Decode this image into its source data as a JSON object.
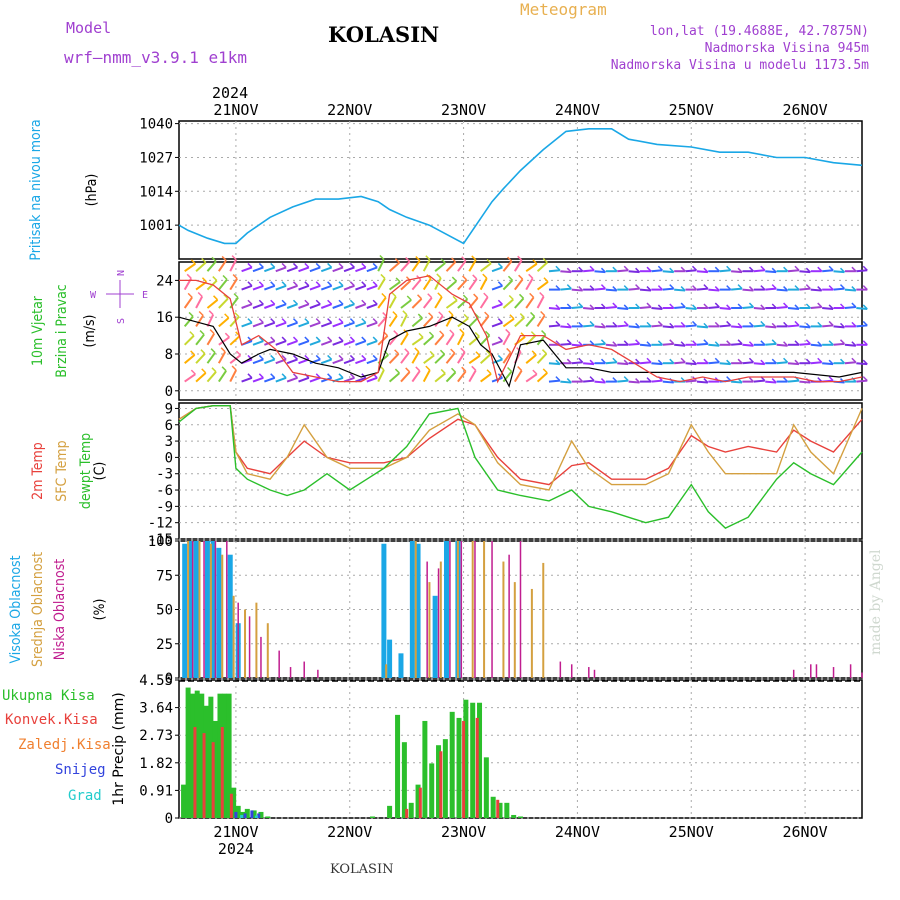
{
  "header": {
    "model_label": "Model",
    "model_name": "wrf—nmm_v3.9.1  e1km",
    "station": "KOLASIN",
    "title": "Meteogram",
    "location_line": "lon,lat (19.4688E, 42.7875N)",
    "altitude_line": "Nadmorska Visina 945m",
    "model_altitude_line": "Nadmorska Visina u modelu 1173.5m",
    "year_label": "2024",
    "watermark": "made by Angel",
    "footer_station": "KOLASIN"
  },
  "colors": {
    "pressure": "#1aa7e6",
    "temp2m": "#e8413c",
    "sfc_temp": "#d4a040",
    "dewpt": "#2bbf2b",
    "high_cloud": "#1aa7e6",
    "mid_cloud": "#d4a040",
    "low_cloud": "#c01d8f",
    "total_precip": "#2bbf2b",
    "conv_precip": "#e8413c",
    "ice_precip": "#f08030",
    "snow": "#3344dd",
    "hail": "#22cccc",
    "wind_speed": "#000000",
    "wind_gust": "#e8413c",
    "label_purple": "#a040d0",
    "label_orange": "#e8b050"
  },
  "chart_data": [
    {
      "type": "line",
      "name": "pressure",
      "xlabel": "",
      "ylabel_lines": [
        "Pritisak na nivou mora",
        "(hPa)"
      ],
      "ylim": [
        988,
        1041
      ],
      "yticks": [
        1001,
        1014,
        1027,
        1040
      ],
      "x_days": [
        0,
        0.08,
        0.25,
        0.4,
        0.5,
        0.6,
        0.8,
        1.0,
        1.2,
        1.4,
        1.6,
        1.75,
        1.85,
        2.0,
        2.2,
        2.5,
        2.75,
        2.85,
        3.0,
        3.2,
        3.4,
        3.6,
        3.8,
        3.95,
        4.2,
        4.5,
        4.75,
        5.0,
        5.25,
        5.5,
        5.75,
        6.0
      ],
      "values": [
        1001,
        999,
        996,
        994,
        994,
        998,
        1004,
        1008,
        1011,
        1011,
        1012,
        1010,
        1007,
        1004,
        1001,
        994,
        1010,
        1015,
        1022,
        1030,
        1037,
        1038,
        1038,
        1034,
        1032,
        1031,
        1029,
        1029,
        1027,
        1027,
        1025,
        1024
      ]
    },
    {
      "type": "line",
      "name": "wind",
      "ylabel_lines": [
        "10m Vjetar",
        "Brzina i Pravac",
        "(m/s)"
      ],
      "ylim": [
        -2,
        28
      ],
      "yticks": [
        0,
        8,
        16,
        24
      ],
      "compass": {
        "n": "N",
        "s": "S",
        "e": "E",
        "w": "W"
      },
      "series": [
        {
          "name": "speed",
          "x_days": [
            0,
            0.15,
            0.3,
            0.45,
            0.55,
            0.7,
            0.8,
            1.0,
            1.2,
            1.4,
            1.6,
            1.75,
            1.85,
            2.0,
            2.2,
            2.4,
            2.55,
            2.65,
            2.75,
            2.9,
            3.0,
            3.2,
            3.4,
            3.6,
            3.8,
            4.0,
            4.3,
            4.6,
            5.0,
            5.4,
            5.8,
            6.0
          ],
          "values": [
            16,
            15,
            14,
            8,
            6,
            8,
            9,
            8,
            6,
            5,
            3,
            4,
            11,
            13,
            14,
            16,
            14,
            10,
            8,
            1,
            10,
            11,
            5,
            5,
            4,
            4,
            4,
            4,
            4,
            4,
            3,
            4
          ]
        },
        {
          "name": "gust",
          "x_days": [
            0,
            0.15,
            0.3,
            0.45,
            0.55,
            0.7,
            0.85,
            1.0,
            1.2,
            1.4,
            1.6,
            1.75,
            1.85,
            2.0,
            2.2,
            2.4,
            2.55,
            2.7,
            2.8,
            3.0,
            3.2,
            3.4,
            3.6,
            3.8,
            4.0,
            4.2,
            4.4,
            4.6,
            4.8,
            5.0,
            5.2,
            5.4,
            5.6,
            5.8,
            6.0
          ],
          "values": [
            24,
            24,
            23,
            20,
            10,
            12,
            9,
            4,
            3,
            2,
            2,
            4,
            21,
            24,
            25,
            21,
            19,
            12,
            2,
            12,
            12,
            9,
            10,
            9,
            6,
            3,
            2,
            3,
            2,
            3,
            3,
            3,
            2,
            2,
            3
          ]
        }
      ]
    },
    {
      "type": "line",
      "name": "temperature",
      "ylabel_lines": [
        "2m Temp",
        "SFC Temp",
        "dewpt Temp",
        "(C)"
      ],
      "ylim": [
        -15,
        10
      ],
      "yticks": [
        9,
        6,
        3,
        0,
        -3,
        -6,
        -9,
        -12,
        -15
      ],
      "series": [
        {
          "name": "2m",
          "x_days": [
            0,
            0.15,
            0.3,
            0.45,
            0.5,
            0.6,
            0.8,
            0.95,
            1.1,
            1.3,
            1.5,
            1.65,
            1.8,
            2.0,
            2.2,
            2.45,
            2.6,
            2.8,
            3.0,
            3.25,
            3.45,
            3.6,
            3.8,
            4.1,
            4.3,
            4.5,
            4.65,
            4.8,
            5.0,
            5.25,
            5.4,
            5.55,
            5.75,
            6.0
          ],
          "values": [
            7,
            9,
            9.5,
            9.5,
            1,
            -2,
            -3,
            0,
            3,
            0,
            -1,
            -1,
            -1,
            0,
            3.5,
            7,
            6,
            0,
            -4,
            -5,
            -1.5,
            -1,
            -4,
            -4,
            -2,
            4,
            2,
            1,
            2,
            1,
            5,
            3,
            1,
            7
          ]
        },
        {
          "name": "sfc",
          "x_days": [
            0,
            0.15,
            0.3,
            0.45,
            0.5,
            0.6,
            0.8,
            0.95,
            1.1,
            1.3,
            1.5,
            1.65,
            1.8,
            2.0,
            2.2,
            2.45,
            2.6,
            2.8,
            3.0,
            3.25,
            3.45,
            3.6,
            3.8,
            4.1,
            4.3,
            4.5,
            4.65,
            4.8,
            5.0,
            5.25,
            5.4,
            5.55,
            5.75,
            6.0
          ],
          "values": [
            7,
            9,
            9.5,
            9.5,
            1,
            -3,
            -4,
            0,
            6,
            0,
            -2,
            -2,
            -2,
            0,
            5,
            8,
            6,
            -1,
            -5,
            -6,
            3,
            -2,
            -5,
            -5,
            -3,
            6,
            1,
            -3,
            -3,
            -3,
            6,
            1,
            -3,
            9
          ]
        },
        {
          "name": "dewpt",
          "x_days": [
            0,
            0.15,
            0.3,
            0.45,
            0.5,
            0.6,
            0.8,
            0.95,
            1.1,
            1.3,
            1.5,
            1.65,
            1.8,
            2.0,
            2.2,
            2.45,
            2.6,
            2.8,
            3.0,
            3.25,
            3.45,
            3.6,
            3.8,
            4.1,
            4.3,
            4.5,
            4.65,
            4.8,
            5.0,
            5.25,
            5.4,
            5.55,
            5.75,
            6.0
          ],
          "values": [
            6.5,
            9,
            9.5,
            9.5,
            -2,
            -4,
            -6,
            -7,
            -6,
            -3,
            -6,
            -4,
            -2,
            2,
            8,
            9,
            0,
            -6,
            -7,
            -8,
            -6,
            -9,
            -10,
            -12,
            -11,
            -5,
            -10,
            -13,
            -11,
            -4,
            -1,
            -3,
            -5,
            1
          ]
        }
      ]
    },
    {
      "type": "bar",
      "name": "cloud_cover",
      "ylabel_lines": [
        "Visoka Oblacnost",
        "Srednja Oblacnost",
        "Niska Oblacnost",
        "(%)"
      ],
      "ylim": [
        0,
        100
      ],
      "yticks": [
        0,
        25,
        50,
        75,
        100
      ],
      "series": [
        {
          "name": "high",
          "x_days": [
            0.05,
            0.1,
            0.15,
            0.25,
            0.3,
            0.35,
            0.45,
            0.52,
            1.8,
            1.85,
            1.95,
            2.05,
            2.1,
            2.25,
            2.35,
            2.45
          ],
          "values": [
            98,
            100,
            100,
            100,
            100,
            95,
            90,
            40,
            98,
            28,
            18,
            100,
            98,
            60,
            100,
            100
          ]
        },
        {
          "name": "mid",
          "x_days": [
            0.08,
            0.18,
            0.28,
            0.38,
            0.48,
            0.58,
            0.68,
            0.78,
            1.82,
            2.08,
            2.2,
            2.3,
            2.45,
            2.58,
            2.68,
            2.85,
            2.95,
            3.1,
            3.2
          ],
          "values": [
            100,
            100,
            98,
            90,
            60,
            50,
            55,
            40,
            10,
            100,
            70,
            85,
            100,
            100,
            100,
            85,
            70,
            65,
            84
          ]
        },
        {
          "name": "low",
          "x_days": [
            0.12,
            0.22,
            0.32,
            0.42,
            0.52,
            0.62,
            0.72,
            0.88,
            0.98,
            1.1,
            1.22,
            2.18,
            2.28,
            2.38,
            2.48,
            2.6,
            2.75,
            2.9,
            3.0,
            3.35,
            3.45,
            3.6,
            3.65,
            5.4,
            5.55,
            5.6,
            5.75,
            5.9,
            6.0
          ],
          "values": [
            100,
            100,
            100,
            100,
            55,
            45,
            30,
            20,
            8,
            12,
            6,
            85,
            80,
            100,
            100,
            100,
            100,
            90,
            100,
            12,
            10,
            8,
            6,
            6,
            10,
            10,
            8,
            10,
            4
          ]
        }
      ]
    },
    {
      "type": "bar",
      "name": "precipitation",
      "ylabel_lines": [
        "1hr Precip (mm)"
      ],
      "legend": [
        "Ukupna Kisa",
        "Konvek.Kisa",
        "Zaledj.Kisa",
        "Snijeg",
        "Grad"
      ],
      "ylim": [
        0,
        4.55
      ],
      "yticks": [
        0,
        0.91,
        1.82,
        2.73,
        3.64,
        4.55
      ],
      "series": [
        {
          "name": "total",
          "x_days": [
            0.04,
            0.08,
            0.12,
            0.16,
            0.2,
            0.24,
            0.28,
            0.32,
            0.36,
            0.4,
            0.44,
            0.48,
            0.52,
            0.56,
            0.6,
            0.66,
            0.72,
            0.78,
            1.7,
            1.85,
            1.92,
            1.98,
            2.04,
            2.1,
            2.16,
            2.22,
            2.28,
            2.34,
            2.4,
            2.46,
            2.52,
            2.58,
            2.64,
            2.7,
            2.76,
            2.82,
            2.88,
            2.94,
            3.0
          ],
          "values": [
            1.1,
            4.3,
            4.1,
            4.2,
            4.1,
            3.7,
            4.0,
            3.2,
            4.1,
            4.1,
            4.1,
            1.0,
            0.4,
            0.2,
            0.3,
            0.25,
            0.2,
            0.05,
            0.05,
            0.4,
            3.4,
            2.5,
            0.5,
            1.1,
            3.2,
            1.8,
            2.4,
            2.6,
            3.5,
            3.3,
            3.9,
            3.8,
            3.8,
            2.0,
            0.7,
            0.5,
            0.5,
            0.1,
            0.05
          ]
        },
        {
          "name": "conv",
          "x_days": [
            0.14,
            0.22,
            0.3,
            0.38,
            0.46,
            2.0,
            2.12,
            2.3,
            2.5,
            2.62,
            2.8
          ],
          "values": [
            3.0,
            2.8,
            2.5,
            3.0,
            0.8,
            0.3,
            1.0,
            2.2,
            3.2,
            3.3,
            0.6
          ]
        },
        {
          "name": "snow",
          "x_days": [
            0.5,
            0.58,
            0.64,
            0.7
          ],
          "values": [
            0.2,
            0.15,
            0.25,
            0.15
          ]
        },
        {
          "name": "hail",
          "x_days": [
            0.55,
            0.68
          ],
          "values": [
            0.1,
            0.08
          ]
        }
      ]
    }
  ],
  "x_axis": {
    "top_ticks": [
      "21NOV",
      "22NOV",
      "23NOV",
      "24NOV",
      "25NOV",
      "26NOV"
    ],
    "bottom_ticks": [
      "21NOV",
      "22NOV",
      "23NOV",
      "24NOV",
      "25NOV",
      "26NOV"
    ],
    "bottom_year": "2024",
    "tick_positions_days": [
      0.5,
      1.5,
      2.5,
      3.5,
      4.5,
      5.5
    ]
  },
  "wind_barb_rows_ms": [
    2,
    6,
    10,
    14,
    18,
    22,
    26
  ]
}
